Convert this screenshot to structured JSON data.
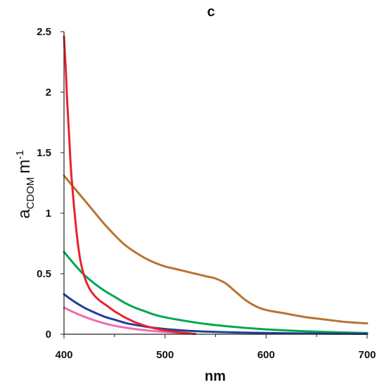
{
  "chart_data": {
    "type": "line",
    "title": "c",
    "xlabel": "nm",
    "ylabel": {
      "main": "a",
      "sub": "CDOM",
      "unit": "m",
      "sup": "-1"
    },
    "xlim": [
      400,
      700
    ],
    "ylim": [
      0,
      2.5
    ],
    "x_ticks": [
      400,
      500,
      600,
      700
    ],
    "y_ticks": [
      {
        "value": 0,
        "label": "0"
      },
      {
        "value": 0.5,
        "label": "0.5"
      },
      {
        "value": 1,
        "label": "1"
      },
      {
        "value": 1.5,
        "label": "1.5"
      },
      {
        "value": 2,
        "label": "2"
      },
      {
        "value": 2.5,
        "label": "2.5"
      }
    ],
    "grid": false,
    "series": [
      {
        "color": "#b87333",
        "x": [
          400,
          410,
          420,
          430,
          440,
          450,
          460,
          470,
          480,
          490,
          500,
          510,
          520,
          530,
          540,
          550,
          560,
          570,
          580,
          590,
          600,
          620,
          640,
          660,
          680,
          700
        ],
        "y": [
          1.31,
          1.21,
          1.11,
          1.01,
          0.91,
          0.82,
          0.74,
          0.68,
          0.63,
          0.59,
          0.56,
          0.54,
          0.52,
          0.5,
          0.48,
          0.46,
          0.42,
          0.35,
          0.28,
          0.23,
          0.2,
          0.17,
          0.14,
          0.12,
          0.1,
          0.09
        ]
      },
      {
        "color": "#00a651",
        "x": [
          400,
          410,
          420,
          430,
          440,
          450,
          460,
          470,
          480,
          490,
          500,
          520,
          540,
          560,
          580,
          600,
          620,
          640,
          660,
          680,
          700
        ],
        "y": [
          0.68,
          0.58,
          0.49,
          0.42,
          0.36,
          0.31,
          0.26,
          0.22,
          0.19,
          0.16,
          0.14,
          0.11,
          0.085,
          0.067,
          0.052,
          0.04,
          0.031,
          0.024,
          0.018,
          0.014,
          0.01
        ]
      },
      {
        "color": "#1f3f99",
        "x": [
          400,
          410,
          420,
          430,
          440,
          450,
          460,
          470,
          480,
          490,
          500,
          520,
          540,
          560,
          580,
          600,
          620,
          640,
          660,
          680,
          700
        ],
        "y": [
          0.33,
          0.27,
          0.22,
          0.18,
          0.145,
          0.12,
          0.095,
          0.078,
          0.064,
          0.052,
          0.043,
          0.03,
          0.022,
          0.017,
          0.013,
          0.01,
          0.008,
          0.006,
          0.005,
          0.004,
          0.003
        ]
      },
      {
        "color": "#f06cb0",
        "x": [
          400,
          410,
          420,
          430,
          440,
          450,
          460,
          470,
          480,
          490,
          500,
          510,
          520
        ],
        "y": [
          0.22,
          0.18,
          0.145,
          0.115,
          0.09,
          0.07,
          0.055,
          0.043,
          0.033,
          0.025,
          0.019,
          0.014,
          0.01
        ]
      },
      {
        "color": "#e8232b",
        "x": [
          400,
          401,
          402,
          403,
          405,
          407,
          410,
          413,
          416,
          420,
          425,
          430,
          435,
          440,
          445,
          450,
          455,
          460,
          465,
          470,
          475,
          480,
          485,
          490,
          495,
          500,
          505,
          510,
          515,
          520,
          525,
          530
        ],
        "y": [
          2.46,
          2.3,
          2.15,
          1.95,
          1.65,
          1.35,
          1.05,
          0.8,
          0.62,
          0.48,
          0.38,
          0.32,
          0.28,
          0.25,
          0.22,
          0.19,
          0.165,
          0.14,
          0.12,
          0.1,
          0.085,
          0.07,
          0.058,
          0.048,
          0.039,
          0.031,
          0.025,
          0.019,
          0.014,
          0.01,
          0.006,
          0.003
        ]
      }
    ]
  }
}
